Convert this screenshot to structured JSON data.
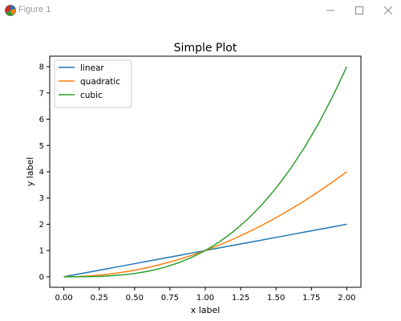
{
  "window": {
    "title": "Figure 1",
    "icons": {
      "app": "matplotlib-icon",
      "minimize": "minimize-icon",
      "maximize": "maximize-icon",
      "close": "close-icon"
    }
  },
  "chart_data": {
    "type": "line",
    "title": "Simple Plot",
    "xlabel": "x label",
    "ylabel": "y label",
    "xlim": [
      -0.1,
      2.1
    ],
    "ylim": [
      -0.4,
      8.4
    ],
    "xticks": [
      0.0,
      0.25,
      0.5,
      0.75,
      1.0,
      1.25,
      1.5,
      1.75,
      2.0
    ],
    "xtick_labels": [
      "0.00",
      "0.25",
      "0.50",
      "0.75",
      "1.00",
      "1.25",
      "1.50",
      "1.75",
      "2.00"
    ],
    "yticks": [
      0,
      1,
      2,
      3,
      4,
      5,
      6,
      7,
      8
    ],
    "ytick_labels": [
      "0",
      "1",
      "2",
      "3",
      "4",
      "5",
      "6",
      "7",
      "8"
    ],
    "grid": false,
    "legend_position": "upper-left",
    "x": [
      0.0,
      0.1,
      0.2,
      0.3,
      0.4,
      0.5,
      0.6,
      0.7,
      0.8,
      0.9,
      1.0,
      1.1,
      1.2,
      1.3,
      1.4,
      1.5,
      1.6,
      1.7,
      1.8,
      1.9,
      2.0
    ],
    "series": [
      {
        "name": "linear",
        "color": "#1f77b4",
        "values": [
          0.0,
          0.1,
          0.2,
          0.3,
          0.4,
          0.5,
          0.6,
          0.7,
          0.8,
          0.9,
          1.0,
          1.1,
          1.2,
          1.3,
          1.4,
          1.5,
          1.6,
          1.7,
          1.8,
          1.9,
          2.0
        ]
      },
      {
        "name": "quadratic",
        "color": "#ff7f0e",
        "values": [
          0.0,
          0.01,
          0.04,
          0.09,
          0.16,
          0.25,
          0.36,
          0.49,
          0.64,
          0.81,
          1.0,
          1.21,
          1.44,
          1.69,
          1.96,
          2.25,
          2.56,
          2.89,
          3.24,
          3.61,
          4.0
        ]
      },
      {
        "name": "cubic",
        "color": "#2ca02c",
        "values": [
          0.0,
          0.001,
          0.008,
          0.027,
          0.064,
          0.125,
          0.216,
          0.343,
          0.512,
          0.729,
          1.0,
          1.331,
          1.728,
          2.197,
          2.744,
          3.375,
          4.096,
          4.913,
          5.832,
          6.859,
          8.0
        ]
      }
    ]
  }
}
